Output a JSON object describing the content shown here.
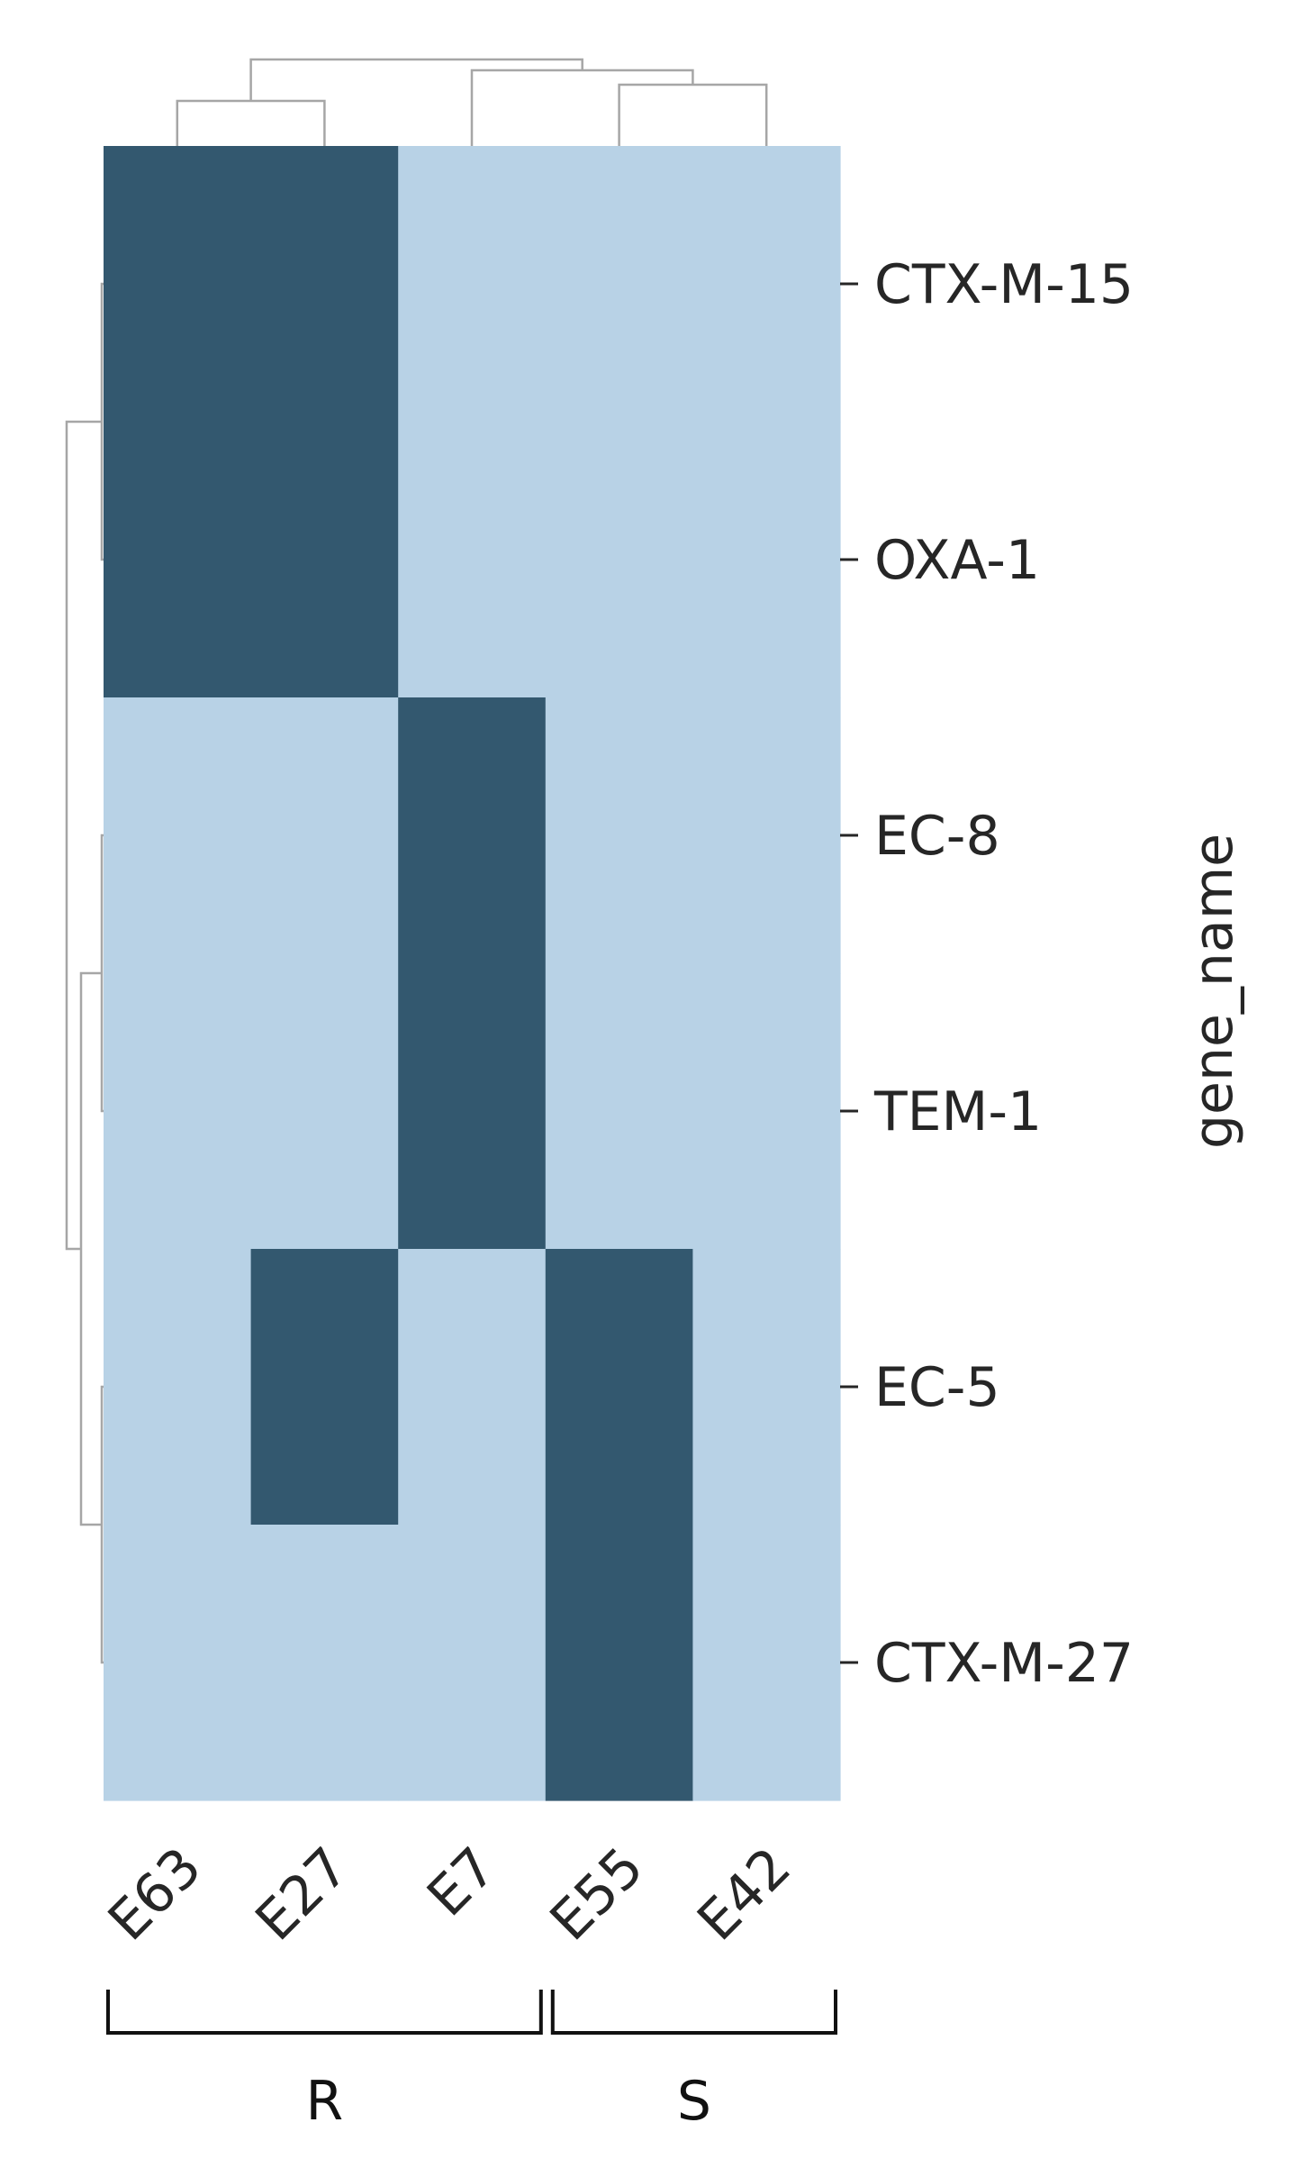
{
  "chart_data": {
    "type": "heatmap",
    "title": "",
    "xlabel": "",
    "ylabel": "gene_name",
    "columns": [
      "E63",
      "E27",
      "E7",
      "E55",
      "E42"
    ],
    "rows": [
      "CTX-M-15",
      "OXA-1",
      "EC-8",
      "TEM-1",
      "EC-5",
      "CTX-M-27"
    ],
    "values": [
      [
        1,
        1,
        0,
        0,
        0
      ],
      [
        1,
        1,
        0,
        0,
        0
      ],
      [
        0,
        0,
        1,
        0,
        0
      ],
      [
        0,
        0,
        1,
        0,
        0
      ],
      [
        0,
        1,
        0,
        1,
        0
      ],
      [
        0,
        0,
        0,
        1,
        0
      ]
    ],
    "colors": {
      "present": "#33586f",
      "absent": "#b8d2e6",
      "dendrogram": "#a6a6a6",
      "bracket": "#111111"
    },
    "groups": [
      {
        "label": "R",
        "columns": [
          "E63",
          "E27",
          "E7"
        ]
      },
      {
        "label": "S",
        "columns": [
          "E55",
          "E42"
        ]
      }
    ],
    "column_dendrogram": true,
    "row_dendrogram": true,
    "grid": false
  }
}
